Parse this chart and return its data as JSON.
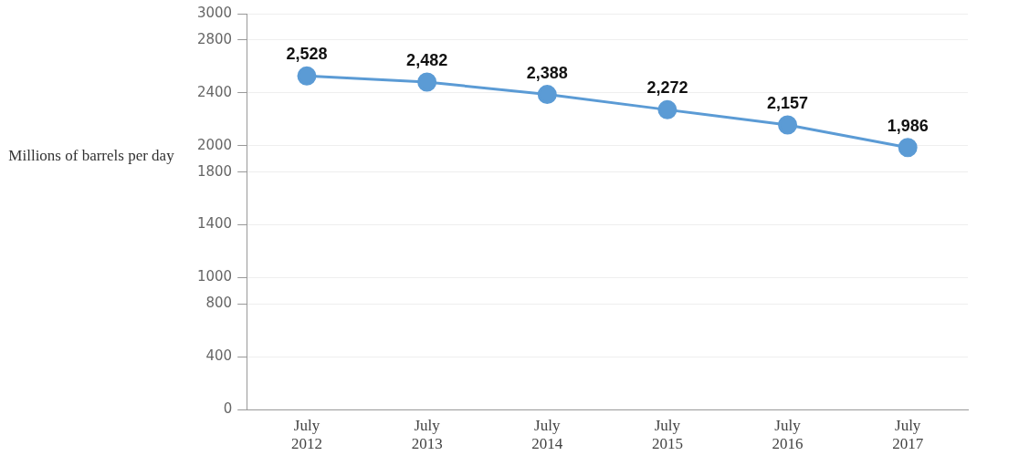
{
  "chart_data": {
    "type": "line",
    "ylabel": "Millions of barrels per day",
    "categories": [
      "July 2012",
      "July 2013",
      "July 2014",
      "July 2015",
      "July 2016",
      "July 2017"
    ],
    "values": [
      2528,
      2482,
      2388,
      2272,
      2157,
      1986
    ],
    "value_labels": [
      "2,528",
      "2,482",
      "2,388",
      "2,272",
      "2,157",
      "1,986"
    ],
    "color": "#5b9bd5",
    "marker": "circle",
    "ylim": [
      0,
      3000
    ],
    "yticks": [
      0,
      400,
      800,
      1000,
      1400,
      1800,
      2000,
      2400,
      2800,
      3000
    ],
    "grid": "y"
  }
}
